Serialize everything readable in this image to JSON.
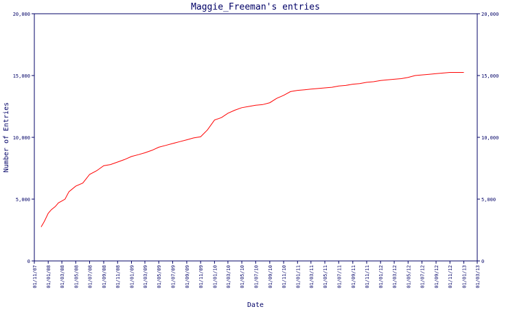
{
  "chart_data": {
    "type": "line",
    "title": "Maggie_Freeman's entries",
    "xlabel": "Date",
    "ylabel": "Number of Entries",
    "ylim": [
      0,
      20000
    ],
    "yticks": [
      0,
      5000,
      10000,
      15000,
      20000
    ],
    "ytick_labels": [
      "0",
      "5,000",
      "10,000",
      "15,000",
      "20,000"
    ],
    "xtick_labels": [
      "01/11/07",
      "01/01/08",
      "01/03/08",
      "01/05/08",
      "01/07/08",
      "01/09/08",
      "01/11/08",
      "01/01/09",
      "01/03/09",
      "01/05/09",
      "01/07/09",
      "01/09/09",
      "01/11/09",
      "01/01/10",
      "01/03/10",
      "01/05/10",
      "01/07/10",
      "01/09/10",
      "01/11/10",
      "01/01/11",
      "01/03/11",
      "01/05/11",
      "01/07/11",
      "01/09/11",
      "01/11/11",
      "01/01/12",
      "01/03/12",
      "01/05/12",
      "01/07/12",
      "01/09/12",
      "01/11/12",
      "01/01/13",
      "01/03/13"
    ],
    "grid": false,
    "line_color": "#ff0000",
    "axis_color": "#000066",
    "series": [
      {
        "x": [
          "01/12/07",
          "15/12/07",
          "01/01/08",
          "15/01/08",
          "01/02/08",
          "15/02/08",
          "01/03/08",
          "15/03/08",
          "01/04/08",
          "01/05/08",
          "01/06/08",
          "01/07/08",
          "01/08/08",
          "01/09/08",
          "01/10/08",
          "01/11/08",
          "01/12/08",
          "01/01/09",
          "01/02/09",
          "01/03/09",
          "01/04/09",
          "01/05/09",
          "01/06/09",
          "01/07/09",
          "01/08/09",
          "01/09/09",
          "01/10/09",
          "01/11/09",
          "01/12/09",
          "01/01/10",
          "01/02/10",
          "01/03/10",
          "01/04/10",
          "01/05/10",
          "01/06/10",
          "01/07/10",
          "01/08/10",
          "01/09/10",
          "01/10/10",
          "01/11/10",
          "01/12/10",
          "01/01/11",
          "01/02/11",
          "01/03/11",
          "01/04/11",
          "01/05/11",
          "01/06/11",
          "01/07/11",
          "01/08/11",
          "01/09/11",
          "01/10/11",
          "01/11/11",
          "01/12/11",
          "01/01/12",
          "01/02/12",
          "01/03/12",
          "01/04/12",
          "01/05/12",
          "01/06/12",
          "01/07/12",
          "01/08/12",
          "01/09/12",
          "01/10/12",
          "01/11/12",
          "01/12/12",
          "01/01/13"
        ],
        "values": [
          2750,
          3200,
          3850,
          4150,
          4400,
          4700,
          4850,
          5000,
          5600,
          6050,
          6300,
          7000,
          7300,
          7700,
          7800,
          8000,
          8200,
          8450,
          8600,
          8750,
          8950,
          9200,
          9350,
          9500,
          9650,
          9800,
          9950,
          10050,
          10600,
          11400,
          11600,
          11950,
          12200,
          12400,
          12500,
          12600,
          12650,
          12800,
          13150,
          13400,
          13700,
          13800,
          13850,
          13900,
          13950,
          14000,
          14050,
          14150,
          14200,
          14300,
          14350,
          14450,
          14500,
          14600,
          14650,
          14700,
          14750,
          14850,
          15000,
          15050,
          15100,
          15150,
          15200,
          15250,
          15250,
          15250
        ]
      }
    ]
  }
}
